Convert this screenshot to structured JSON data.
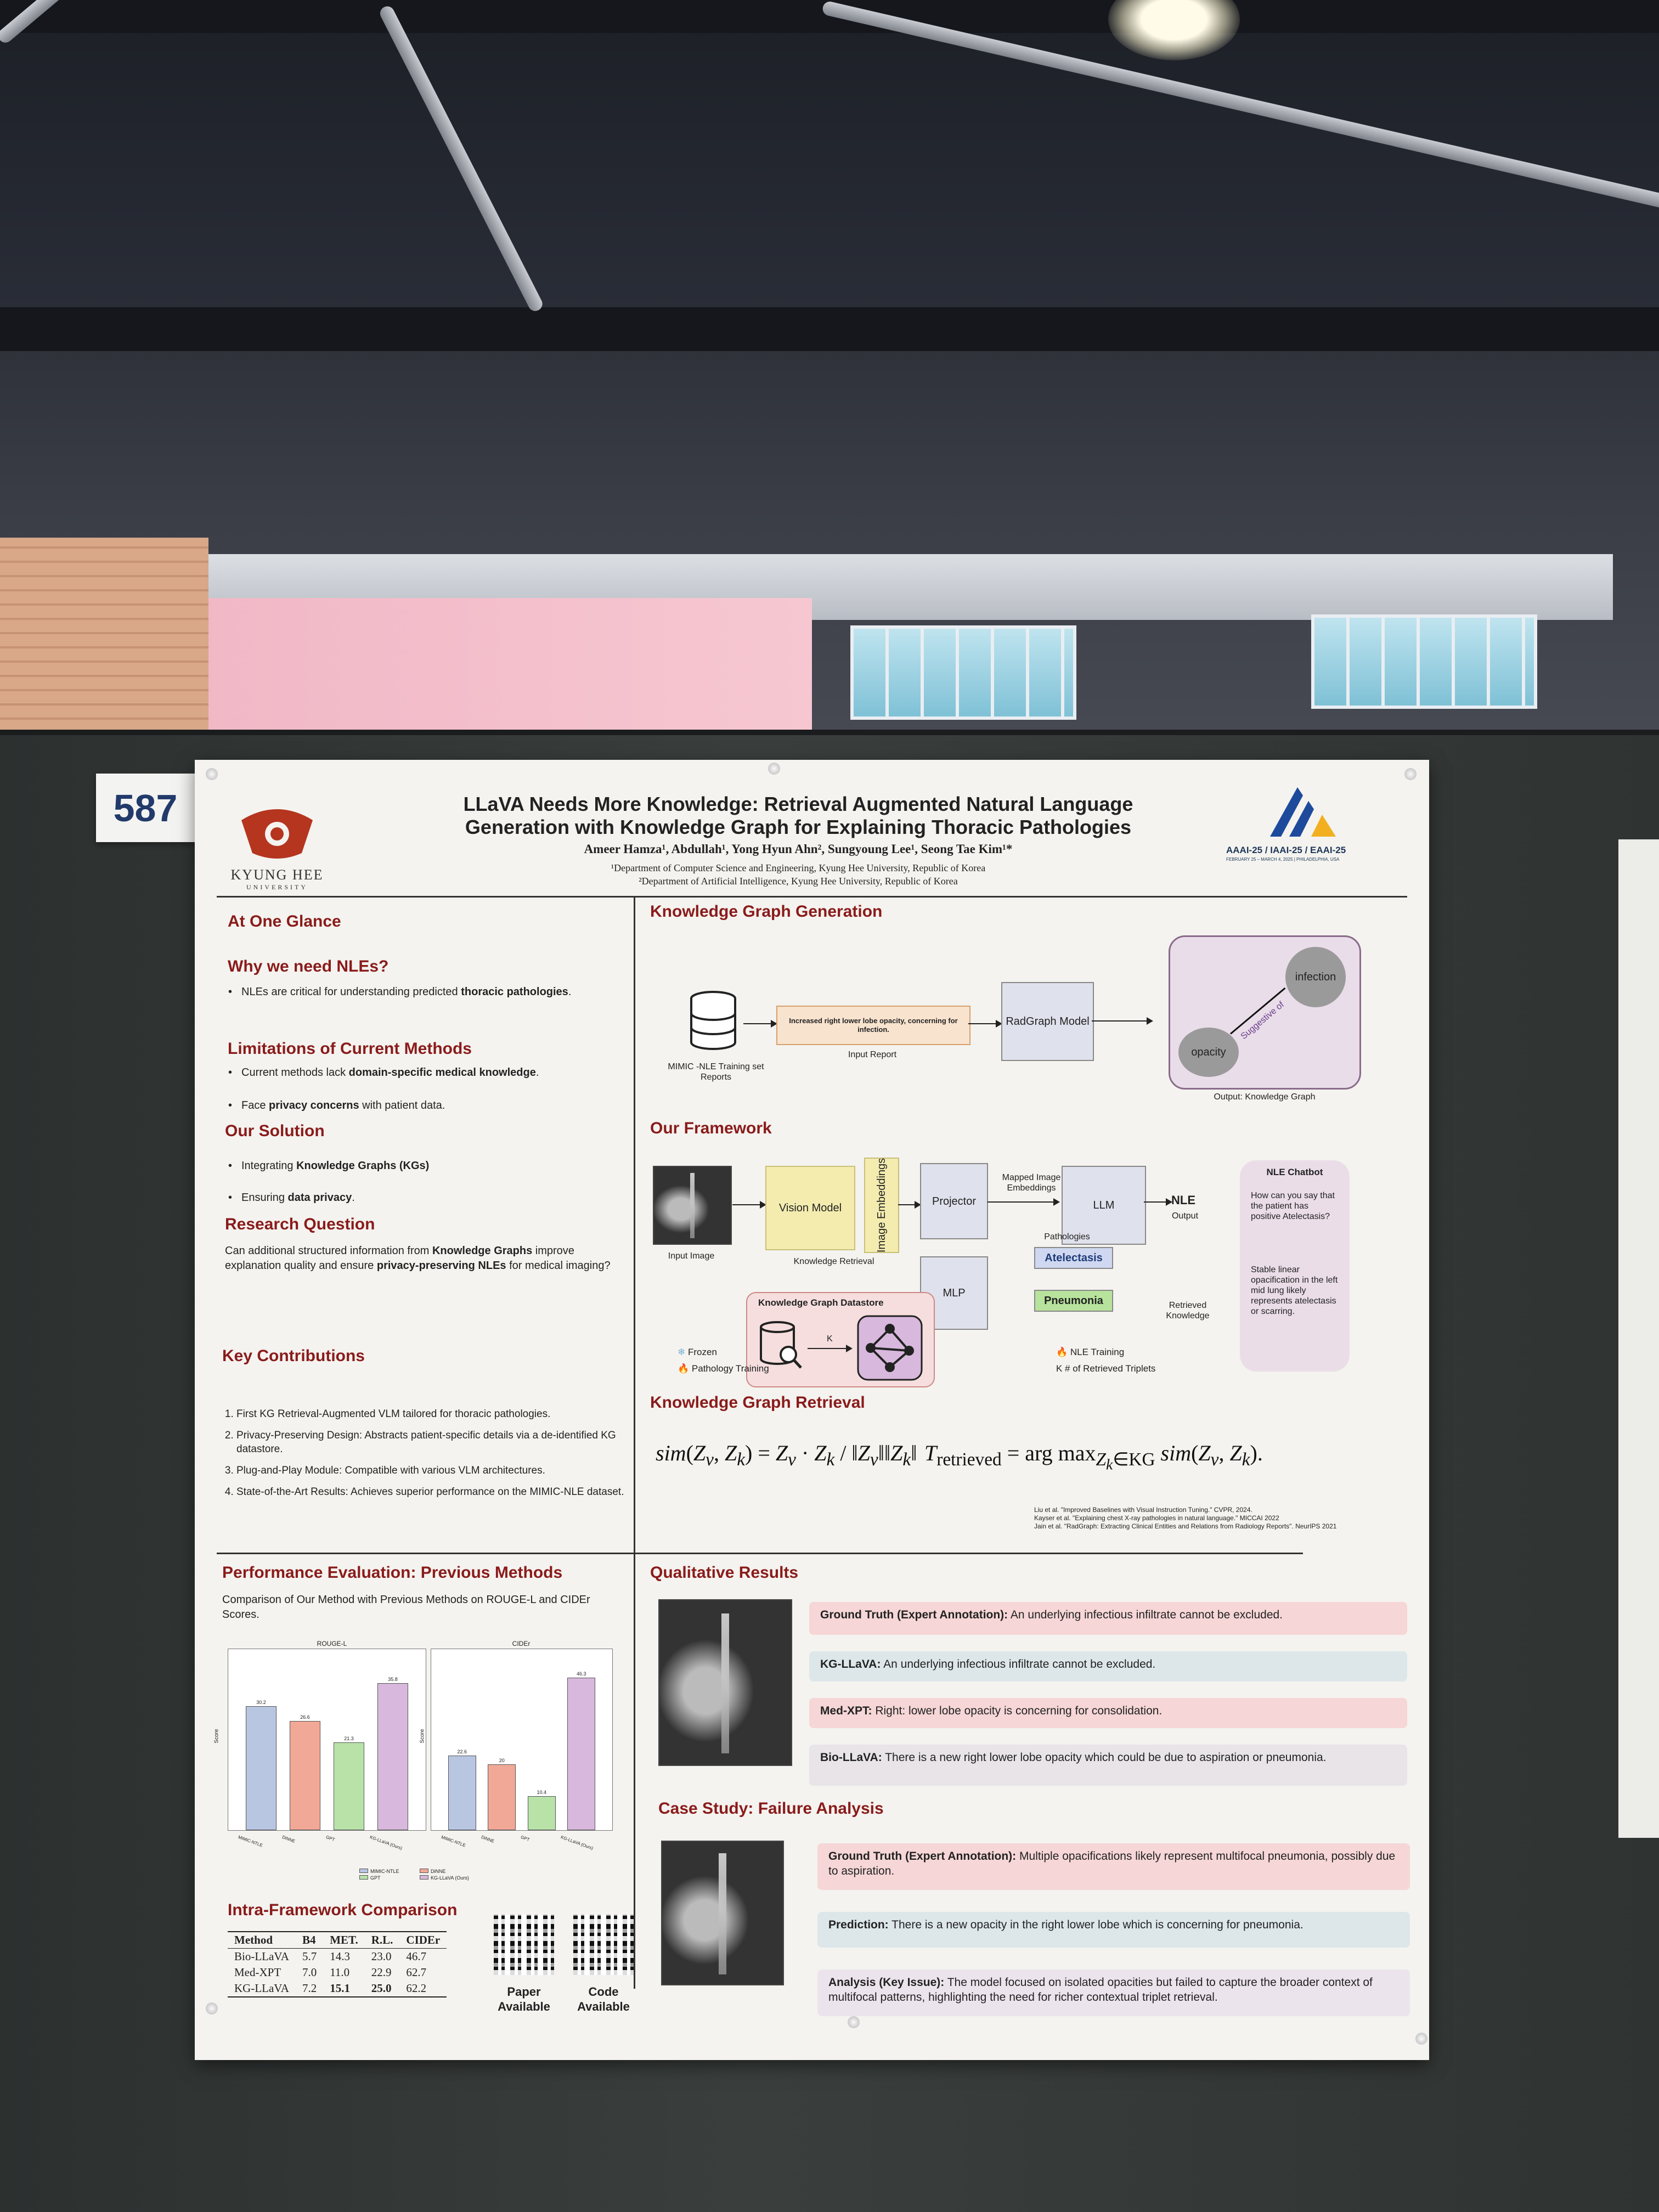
{
  "tag": {
    "number": "587"
  },
  "poster": {
    "title_line1": "LLaVA Needs More Knowledge: Retrieval Augmented Natural Language",
    "title_line2": "Generation with Knowledge Graph for Explaining Thoracic Pathologies",
    "authors": "Ameer Hamza¹, Abdullah¹, Yong Hyun Ahn², Sungyoung Lee¹, Seong Tae Kim¹*",
    "affiliation1": "¹Department of Computer Science and Engineering, Kyung Hee University, Republic of Korea",
    "affiliation2": "²Department of Artificial Intelligence, Kyung Hee University, Republic of Korea",
    "university": "KYUNG HEE",
    "university_sub": "UNIVERSITY",
    "conference": "AAAI-25 / IAAI-25 / EAAI-25",
    "conference_dates": "FEBRUARY 25 – MARCH 4, 2025 | PHILADELPHIA, USA"
  },
  "left": {
    "at_one_glance": "At One Glance",
    "why_heading": "Why we need NLEs?",
    "why_b1_pre": "NLEs are critical for understanding predicted ",
    "why_b1_bold": "thoracic pathologies",
    "why_b1_post": ".",
    "limits_heading": "Limitations of Current Methods",
    "limits_b1_pre": "Current methods lack ",
    "limits_b1_bold": "domain-specific medical knowledge",
    "limits_b1_post": ".",
    "limits_b2_pre": "Face ",
    "limits_b2_bold": "privacy concerns",
    "limits_b2_post": " with patient data.",
    "solution_heading": "Our Solution",
    "solution_b1_pre": "Integrating ",
    "solution_b1_bold": "Knowledge Graphs (KGs)",
    "solution_b2_pre": "Ensuring ",
    "solution_b2_bold": "data privacy",
    "solution_b2_post": ".",
    "rq_heading": "Research Question",
    "rq_pre": "Can additional structured information from ",
    "rq_bold1": "Knowledge Graphs",
    "rq_mid": " improve explanation quality and ensure ",
    "rq_bold2": "privacy-preserving NLEs",
    "rq_post": " for medical imaging?",
    "contrib_heading": "Key Contributions",
    "contributions": [
      "First KG Retrieval-Augmented VLM tailored for thoracic pathologies.",
      "Privacy-Preserving Design: Abstracts patient-specific details via a de-identified KG datastore.",
      "Plug-and-Play Module: Compatible with various VLM architectures.",
      "State-of-the-Art Results: Achieves superior performance on the MIMIC-NLE dataset."
    ],
    "perf_heading": "Performance Evaluation: Previous Methods",
    "perf_desc": "Comparison of Our Method with Previous Methods on ROUGE-L and CIDEr Scores.",
    "intra_heading": "Intra-Framework Comparison",
    "table_headers": [
      "Method",
      "B4",
      "MET.",
      "R.L.",
      "CIDEr"
    ],
    "table_rows": [
      [
        "Bio-LLaVA",
        "5.7",
        "14.3",
        "23.0",
        "46.7"
      ],
      [
        "Med-XPT",
        "7.0",
        "11.0",
        "22.9",
        "62.7"
      ],
      [
        "KG-LLaVA",
        "7.2",
        "15.1",
        "25.0",
        "62.2"
      ]
    ],
    "qr_paper": "Paper Available",
    "qr_code": "Code Available"
  },
  "kg_gen": {
    "heading": "Knowledge Graph Generation",
    "datastore_label": "MIMIC -NLE Training set Reports",
    "report_text": "Increased right lower lobe opacity, concerning for infection.",
    "input_report": "Input Report",
    "radgraph": "RadGraph Model",
    "node_infection": "infection",
    "node_opacity": "opacity",
    "edge_label": "Suggestive of",
    "output_label": "Output: Knowledge Graph"
  },
  "framework": {
    "heading": "Our Framework",
    "input_image": "Input Image",
    "vision_model": "Vision Model",
    "image_embeddings": "Image Embeddings",
    "projector": "Projector",
    "mapped": "Mapped Image Embeddings",
    "llm": "LLM",
    "nle": "NLE",
    "output": "Output",
    "kr": "Knowledge Retrieval",
    "mlp": "MLP",
    "pathologies": "Pathologies",
    "atelectasis": "Atelectasis",
    "pneumonia": "Pneumonia",
    "retrieved": "Retrieved Knowledge",
    "kg_datastore": "Knowledge Graph Datastore",
    "k": "K",
    "legend_frozen": "Frozen",
    "legend_nle": "NLE Training",
    "legend_path": "Pathology Training",
    "legend_k": "K  # of Retrieved Triplets",
    "chatbot_title": "NLE Chatbot",
    "chatbot_q": "How can you say that the patient has positive Atelectasis?",
    "chatbot_a": "Stable linear opacification in the left mid lung likely represents atelectasis or scarring."
  },
  "kg_retrieval": {
    "heading": "Knowledge Graph Retrieval",
    "refs": [
      "Liu et al. \"Improved Baselines with Visual Instruction Tuning.\" CVPR, 2024.",
      "Kayser et al. \"Explaining chest X-ray pathologies in natural language.\" MICCAI 2022",
      "Jain et al. \"RadGraph: Extracting Clinical Entities and Relations from Radiology Reports\". NeurIPS 2021"
    ]
  },
  "qualitative": {
    "heading": "Qualitative Results",
    "rows": [
      {
        "label": "Ground Truth (Expert Annotation):",
        "text": " An underlying infectious infiltrate cannot be excluded.",
        "color": "#f6d6d6"
      },
      {
        "label": "KG-LLaVA:",
        "text": " An underlying infectious infiltrate cannot be excluded.",
        "color": "#dde7ea"
      },
      {
        "label": "Med-XPT:",
        "text": " Right: lower lobe opacity is concerning for consolidation.",
        "color": "#f6d6d6"
      },
      {
        "label": "Bio-LLaVA:",
        "text": " There is a new right lower lobe opacity which could be due to aspiration or pneumonia.",
        "color": "#e8e4e8"
      }
    ]
  },
  "failure": {
    "heading": "Case Study: Failure Analysis",
    "rows": [
      {
        "label": "Ground Truth (Expert Annotation):",
        "text": " Multiple opacifications likely represent multifocal pneumonia, possibly due to aspiration.",
        "color": "#f6d6d6"
      },
      {
        "label": "Prediction:",
        "text": " There is a new opacity in the right lower lobe which is concerning for pneumonia.",
        "color": "#dde7ea"
      },
      {
        "label": "Analysis (Key Issue):",
        "text": " The model focused on isolated opacities but failed to capture the broader context of multifocal patterns, highlighting the need for richer contextual triplet retrieval.",
        "color": "#ece4ec"
      }
    ]
  },
  "chart_data": [
    {
      "type": "bar",
      "title": "ROUGE-L",
      "ylabel": "Score",
      "categories": [
        "MIMIC-NTLE",
        "DiNNE",
        "GPT",
        "KG-LLaVA (Ours)"
      ],
      "values": [
        30.2,
        26.6,
        21.3,
        35.8
      ],
      "ylim": [
        0,
        40
      ],
      "colors": [
        "#b8c6e2",
        "#f2a896",
        "#b8e2a8",
        "#d8b8dc"
      ]
    },
    {
      "type": "bar",
      "title": "CIDEr",
      "ylabel": "Score",
      "categories": [
        "MIMIC-NTLE",
        "DiNNE",
        "GPT",
        "KG-LLaVA (Ours)"
      ],
      "values": [
        22.6,
        20.0,
        10.4,
        46.3
      ],
      "ylim": [
        0,
        50
      ],
      "colors": [
        "#b8c6e2",
        "#f2a896",
        "#b8e2a8",
        "#d8b8dc"
      ]
    }
  ]
}
